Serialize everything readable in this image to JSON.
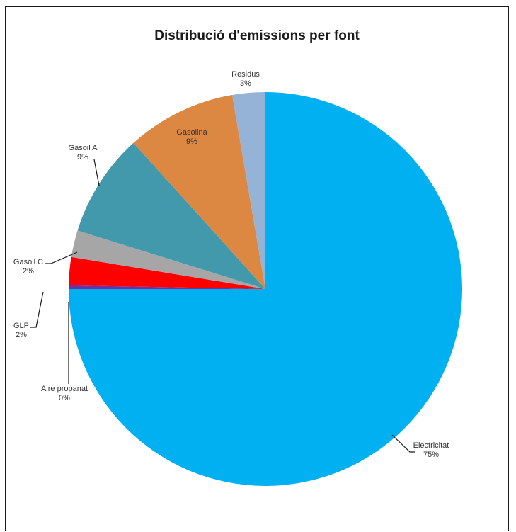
{
  "chart_data": {
    "type": "pie",
    "title": "Distribució d'emissions  per font",
    "start_angle_deg": 0,
    "direction": "clockwise",
    "slices": [
      {
        "label": "Electricitat",
        "percent_label": "75%",
        "value": 75.0,
        "color": "#00b0f0"
      },
      {
        "label": "Aire propanat",
        "percent_label": "0%",
        "value": 0.3,
        "color": "#7030a0"
      },
      {
        "label": "GLP",
        "percent_label": "2%",
        "value": 2.3,
        "color": "#ff0000"
      },
      {
        "label": "Gasoil C",
        "percent_label": "2%",
        "value": 2.2,
        "color": "#a6a6a6"
      },
      {
        "label": "Gasoil A",
        "percent_label": "9%",
        "value": 8.5,
        "color": "#4299ab"
      },
      {
        "label": "Gasolina",
        "percent_label": "9%",
        "value": 9.0,
        "color": "#dc8842"
      },
      {
        "label": "Residus",
        "percent_label": "3%",
        "value": 2.7,
        "color": "#95b3d7"
      }
    ]
  }
}
